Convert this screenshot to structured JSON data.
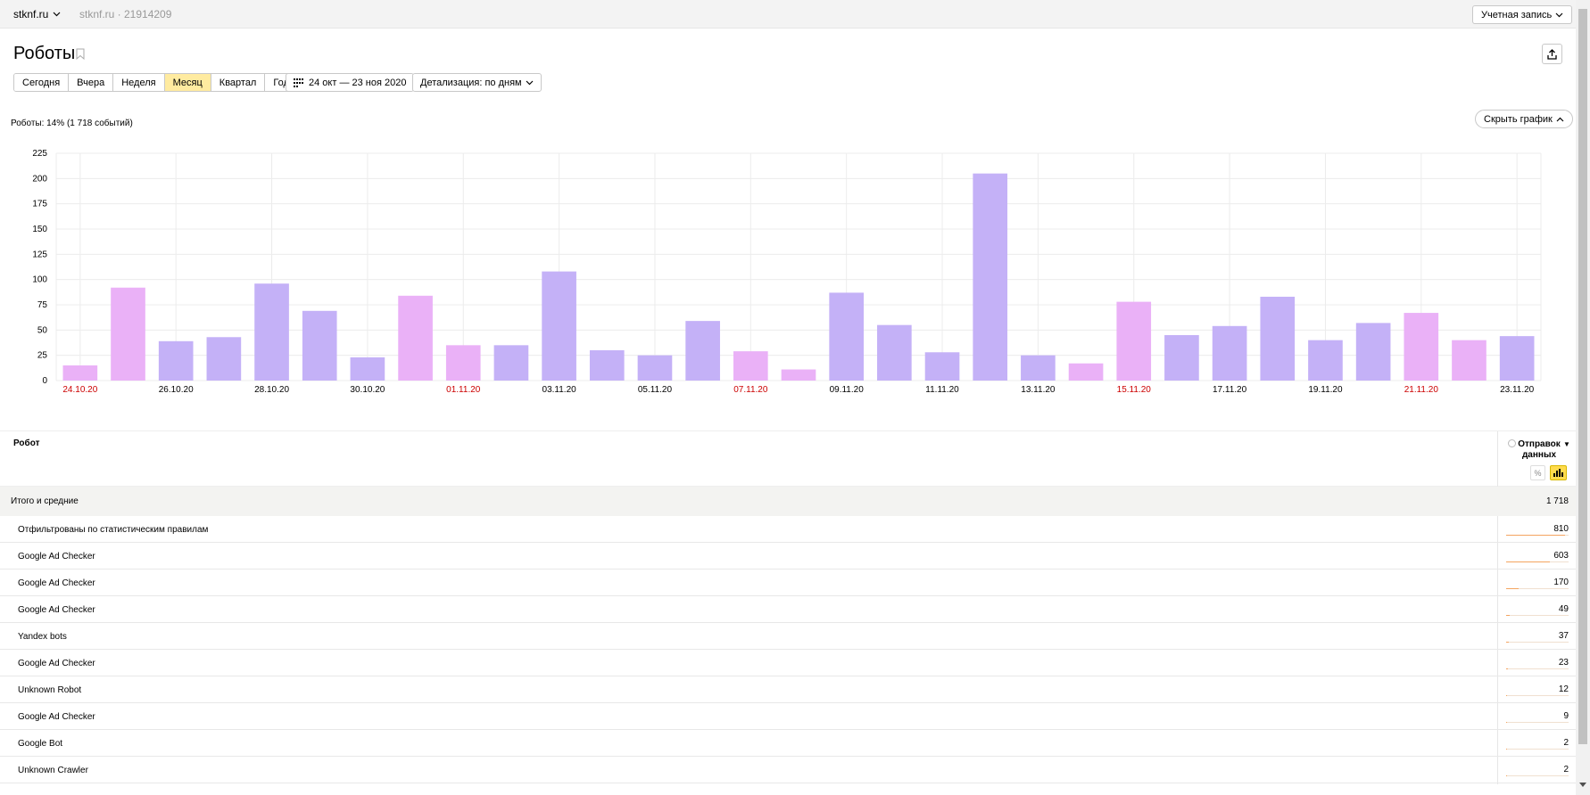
{
  "topbar": {
    "site": "stknf.ru",
    "site_id": "stknf.ru · 21914209",
    "account": "Учетная запись"
  },
  "page": {
    "title": "Роботы"
  },
  "period_tabs": [
    {
      "label": "Сегодня",
      "active": false
    },
    {
      "label": "Вчера",
      "active": false
    },
    {
      "label": "Неделя",
      "active": false
    },
    {
      "label": "Месяц",
      "active": true
    },
    {
      "label": "Квартал",
      "active": false
    },
    {
      "label": "Год",
      "active": false
    }
  ],
  "date_range": "24 окт — 23 ноя 2020",
  "detail": "Детализация: по дням",
  "chart_summary": "Роботы: 14% (1 718 событий)",
  "hide_chart": "Скрыть график",
  "colors": {
    "weekday_bar": "#c4b1f7",
    "weekend_bar": "#eab1f7",
    "weekend_label": "#cc0000",
    "active_tab": "#ffeba0"
  },
  "chart_data": {
    "type": "bar",
    "ylim": [
      0,
      225
    ],
    "yticks": [
      0,
      25,
      50,
      75,
      100,
      125,
      150,
      175,
      200,
      225
    ],
    "categories": [
      "24.10.20",
      "25.10.20",
      "26.10.20",
      "27.10.20",
      "28.10.20",
      "29.10.20",
      "30.10.20",
      "31.10.20",
      "01.11.20",
      "02.11.20",
      "03.11.20",
      "04.11.20",
      "05.11.20",
      "06.11.20",
      "07.11.20",
      "08.11.20",
      "09.11.20",
      "10.11.20",
      "11.11.20",
      "12.11.20",
      "13.11.20",
      "14.11.20",
      "15.11.20",
      "16.11.20",
      "17.11.20",
      "18.11.20",
      "19.11.20",
      "20.11.20",
      "21.11.20",
      "22.11.20",
      "23.11.20"
    ],
    "values": [
      15,
      92,
      39,
      43,
      96,
      69,
      23,
      84,
      35,
      35,
      108,
      30,
      25,
      59,
      29,
      11,
      87,
      55,
      28,
      205,
      25,
      17,
      78,
      45,
      54,
      83,
      40,
      57,
      67,
      40,
      44
    ],
    "weekend": [
      true,
      true,
      false,
      false,
      false,
      false,
      false,
      true,
      true,
      false,
      false,
      false,
      false,
      false,
      true,
      true,
      false,
      false,
      false,
      false,
      false,
      true,
      true,
      false,
      false,
      false,
      false,
      false,
      true,
      true,
      false
    ],
    "shown_labels": [
      "24.10.20",
      "26.10.20",
      "28.10.20",
      "30.10.20",
      "01.11.20",
      "03.11.20",
      "05.11.20",
      "07.11.20",
      "09.11.20",
      "11.11.20",
      "13.11.20",
      "15.11.20",
      "17.11.20",
      "19.11.20",
      "21.11.20",
      "23.11.20"
    ],
    "grid": true
  },
  "table": {
    "col_robot": "Робот",
    "col_metric": "Отправок данных",
    "pct_label": "%",
    "total_label": "Итого и средние",
    "total_value": "1 718",
    "rows": [
      {
        "label": "Отфильтрованы по статистическим правилам",
        "value": "810",
        "share": 0.4715
      },
      {
        "label": "Google Ad Checker",
        "value": "603",
        "share": 0.351
      },
      {
        "label": "Google Ad Checker",
        "value": "170",
        "share": 0.099
      },
      {
        "label": "Google Ad Checker",
        "value": "49",
        "share": 0.0285
      },
      {
        "label": "Yandex bots",
        "value": "37",
        "share": 0.0215
      },
      {
        "label": "Google Ad Checker",
        "value": "23",
        "share": 0.0134
      },
      {
        "label": "Unknown Robot",
        "value": "12",
        "share": 0.007
      },
      {
        "label": "Google Ad Checker",
        "value": "9",
        "share": 0.0052
      },
      {
        "label": "Google Bot",
        "value": "2",
        "share": 0.0012
      },
      {
        "label": "Unknown Crawler",
        "value": "2",
        "share": 0.0012
      }
    ]
  }
}
